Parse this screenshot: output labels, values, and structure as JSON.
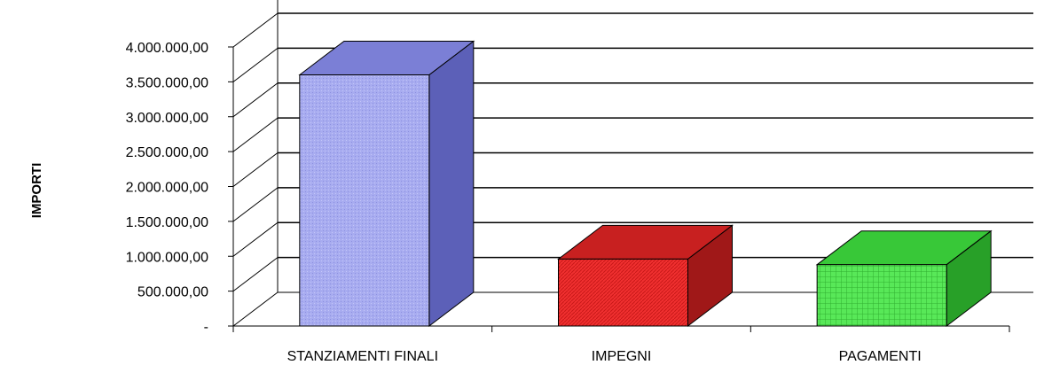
{
  "chart_data": {
    "type": "bar",
    "title": "",
    "ylabel": "IMPORTI",
    "xlabel": "",
    "categories": [
      "STANZIAMENTI FINALI",
      "IMPEGNI",
      "PAGAMENTI"
    ],
    "values": [
      3600000,
      960000,
      880000
    ],
    "ylim": [
      0,
      4000000
    ],
    "y_ticks": [
      0,
      500000,
      1000000,
      1500000,
      2000000,
      2500000,
      3000000,
      3500000,
      4000000
    ],
    "y_tick_labels": [
      "-",
      "500.000,00",
      "1.000.000,00",
      "1.500.000,00",
      "2.000.000,00",
      "2.500.000,00",
      "3.000.000,00",
      "3.500.000,00",
      "4.000.000,00"
    ],
    "grid": true,
    "three_d": true,
    "legend": "none",
    "colors": {
      "STANZIAMENTI FINALI": {
        "front": "#a8acf0",
        "top": "#7b7fd6",
        "side": "#5c60b8"
      },
      "IMPEGNI": {
        "front": "#f03030",
        "top": "#c82020",
        "side": "#a01818"
      },
      "PAGAMENTI": {
        "front": "#58e858",
        "top": "#38c838",
        "side": "#28a028"
      }
    }
  }
}
